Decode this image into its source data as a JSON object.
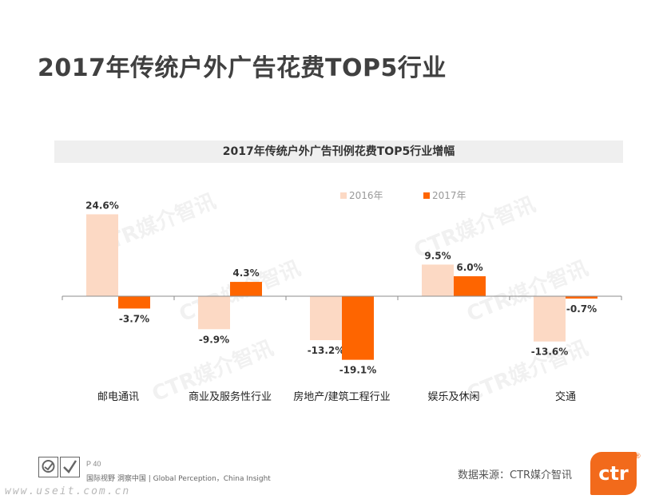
{
  "page": {
    "title": "2017年传统户外广告花费TOP5行业"
  },
  "footer": {
    "page_number": "P 40",
    "slogan": "国际视野  洞察中国 | Global Perception，China Insight",
    "url": "www.useit.com.cn",
    "source": "数据来源：CTR媒介智讯",
    "logo_text": "ctr",
    "reg_mark": "®"
  },
  "watermark_text": "CTR媒介智讯",
  "colors": {
    "series_2016": "#fcd9c4",
    "series_2017": "#fe6500",
    "axis": "#8c8c8c",
    "brand": "#f26a1b"
  },
  "chart_data": {
    "type": "bar",
    "title": "2017年传统户外广告刊例花费TOP5行业增幅",
    "categories": [
      "邮电通讯",
      "商业及服务性行业",
      "房地产/建筑工程行业",
      "娱乐及休闲",
      "交通"
    ],
    "series": [
      {
        "name": "2016年",
        "values": [
          24.6,
          -9.9,
          -13.2,
          9.5,
          -13.6
        ],
        "labels": [
          "24.6%",
          "-9.9%",
          "-13.2%",
          "9.5%",
          "-13.6%"
        ]
      },
      {
        "name": "2017年",
        "values": [
          -3.7,
          4.3,
          -19.1,
          6.0,
          -0.7
        ],
        "labels": [
          "-3.7%",
          "4.3%",
          "-19.1%",
          "6.0%",
          "-0.7%"
        ]
      }
    ],
    "unit": "%",
    "ylim": [
      -25,
      25
    ],
    "legend_position": "top-right",
    "grid": false
  }
}
